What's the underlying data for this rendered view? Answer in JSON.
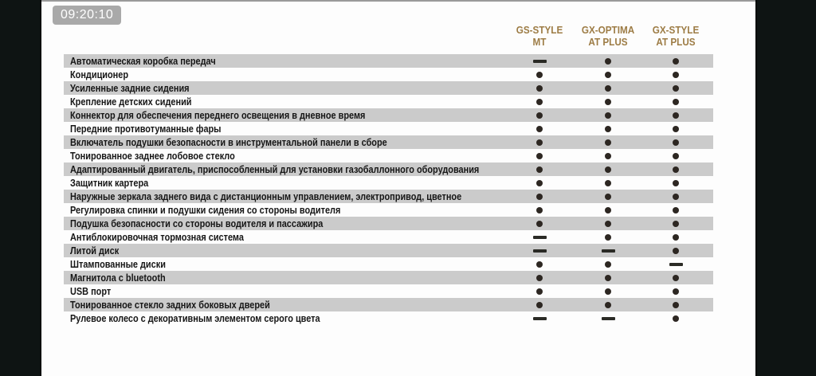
{
  "overlay": {
    "timestamp": "09:20:10"
  },
  "table": {
    "columns": [
      {
        "line1": "GS-STYLE",
        "line2": "MT"
      },
      {
        "line1": "GX-OPTIMA",
        "line2": "AT PLUS"
      },
      {
        "line1": "GX-STYLE",
        "line2": "AT PLUS"
      }
    ],
    "rows": [
      {
        "feature": "Автоматическая коробка передач",
        "values": [
          "dash",
          "dot",
          "dot"
        ]
      },
      {
        "feature": "Кондиционер",
        "values": [
          "dot",
          "dot",
          "dot"
        ]
      },
      {
        "feature": "Усиленные задние сидения",
        "values": [
          "dot",
          "dot",
          "dot"
        ]
      },
      {
        "feature": "Крепление детских сидений",
        "values": [
          "dot",
          "dot",
          "dot"
        ]
      },
      {
        "feature": "Коннектор для обеспечения переднего освещения в дневное время",
        "values": [
          "dot",
          "dot",
          "dot"
        ]
      },
      {
        "feature": "Передние противотуманные фары",
        "values": [
          "dot",
          "dot",
          "dot"
        ]
      },
      {
        "feature": "Включатель подушки безопасности в инструментальной панели в сборе",
        "values": [
          "dot",
          "dot",
          "dot"
        ]
      },
      {
        "feature": "Тонированное заднее лобовое стекло",
        "values": [
          "dot",
          "dot",
          "dot"
        ]
      },
      {
        "feature": "Адаптированный двигатель, приспособленный для установки газобаллонного оборудования",
        "values": [
          "dot",
          "dot",
          "dot"
        ]
      },
      {
        "feature": "Защитник картера",
        "values": [
          "dot",
          "dot",
          "dot"
        ]
      },
      {
        "feature": "Наружные зеркала заднего вида  с дистанционным управлением, электропривод, цветное",
        "values": [
          "dot",
          "dot",
          "dot"
        ]
      },
      {
        "feature": "Регулировка спинки и подушки сидения со стороны водителя",
        "values": [
          "dot",
          "dot",
          "dot"
        ]
      },
      {
        "feature": "Подушка безопасности со стороны водителя и пассажира",
        "values": [
          "dot",
          "dot",
          "dot"
        ]
      },
      {
        "feature": "Антиблокировочная тормозная система",
        "values": [
          "dash",
          "dot",
          "dot"
        ]
      },
      {
        "feature": "Литой диск",
        "values": [
          "dash",
          "dash",
          "dot"
        ]
      },
      {
        "feature": "Штампованные диски",
        "values": [
          "dot",
          "dot",
          "dash"
        ]
      },
      {
        "feature": "Магнитола  с bluetooth",
        "values": [
          "dot",
          "dot",
          "dot"
        ]
      },
      {
        "feature": "USB порт",
        "values": [
          "dot",
          "dot",
          "dot"
        ]
      },
      {
        "feature": "Тонированное стекло задних боковых дверей",
        "values": [
          "dot",
          "dot",
          "dot"
        ]
      },
      {
        "feature": "Рулевое колесо с декоративным элементом серого цвета",
        "values": [
          "dash",
          "dash",
          "dot"
        ]
      }
    ]
  },
  "colors": {
    "accent_gold": "#9d7c45",
    "row_stripe": "#cbcbcb",
    "marker_dark": "#2d2722",
    "letterbox": "#0e1413",
    "badge_bg": "#a9a9a9",
    "content_bg": "#fdfdfd"
  }
}
